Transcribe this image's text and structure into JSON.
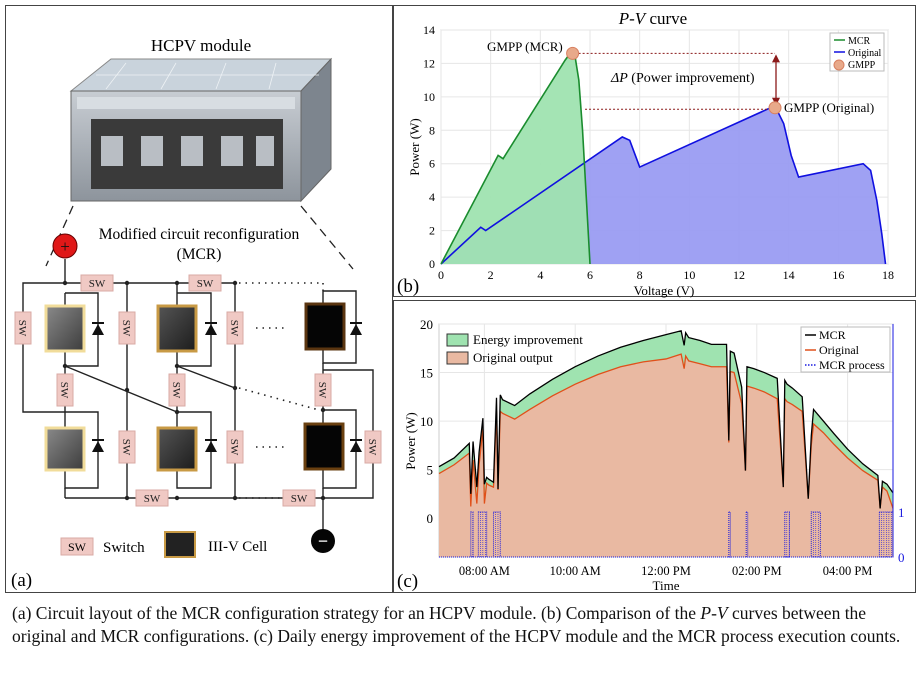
{
  "panel_a": {
    "label": "(a)",
    "title": "HCPV module",
    "subtitle_line1": "Modified circuit reconfiguration",
    "subtitle_line2": "(MCR)",
    "switch_label": "SW",
    "legend_switch": "Switch",
    "legend_cell": "III-V Cell",
    "plus_symbol": "+",
    "minus_symbol": "−"
  },
  "chart_data": [
    {
      "type": "area",
      "panel_label": "(b)",
      "title_italic": "P-V",
      "title_rest": " curve",
      "xlabel": "Voltage (V)",
      "ylabel": "Power (W)",
      "xlim": [
        0,
        18
      ],
      "ylim": [
        0,
        14
      ],
      "xticks": [
        0,
        2,
        4,
        6,
        8,
        10,
        12,
        14,
        16,
        18
      ],
      "yticks": [
        0,
        2,
        4,
        6,
        8,
        10,
        12,
        14
      ],
      "grid": true,
      "legend_position": "top-right",
      "series": [
        {
          "name": "MCR",
          "color": "#1a8c2e",
          "fill": "#9fe3b0",
          "x": [
            0,
            2.3,
            2.5,
            5.0,
            5.2,
            5.4,
            5.55,
            5.7,
            5.85,
            6.0
          ],
          "y": [
            0,
            6.5,
            6.3,
            12.2,
            12.6,
            12.4,
            11,
            8,
            4,
            0
          ]
        },
        {
          "name": "Original",
          "color": "#1010e0",
          "fill": "#9a9cf2",
          "x": [
            0,
            1.6,
            1.8,
            7.3,
            7.6,
            7.8,
            8.0,
            13.2,
            13.5,
            13.8,
            14.1,
            14.4,
            17.0,
            17.3,
            17.55,
            17.75,
            17.9
          ],
          "y": [
            0,
            2.2,
            2.0,
            7.6,
            7.4,
            6.6,
            5.8,
            9.3,
            9.3,
            8.4,
            6.5,
            5.2,
            6.0,
            5.6,
            3.8,
            1.8,
            0
          ]
        }
      ],
      "gmpp": {
        "name": "GMPP",
        "color": "#e8a98a",
        "points": [
          {
            "label": "GMPP (MCR)",
            "x": 5.3,
            "y": 12.6
          },
          {
            "label": "GMPP (Original)",
            "x": 13.45,
            "y": 9.35
          }
        ]
      },
      "annotation": {
        "delta": "ΔP",
        "text": " (Power improvement)",
        "color": "#8b1a1a"
      }
    },
    {
      "type": "area",
      "panel_label": "(c)",
      "xlabel": "Time",
      "ylabel": "Power (W)",
      "xlim": [
        "07:00",
        "17:00"
      ],
      "ylim": [
        -4,
        20
      ],
      "xticks": [
        "08:00 AM",
        "10:00 AM",
        "12:00 PM",
        "02:00 PM",
        "04:00 PM"
      ],
      "yticks": [
        0,
        5,
        10,
        15,
        20
      ],
      "right_yticks": [
        0,
        1
      ],
      "grid": true,
      "legend_position": "top-right",
      "area_legend": [
        {
          "name": "Energy improvement",
          "color": "#9fe3b0"
        },
        {
          "name": "Original output",
          "color": "#e9b9a2"
        }
      ],
      "time": [
        "07:00",
        "07:20",
        "07:40",
        "07:42",
        "07:45",
        "07:50",
        "07:53",
        "07:58",
        "08:00",
        "08:03",
        "08:06",
        "08:12",
        "08:16",
        "08:18",
        "08:21",
        "08:24",
        "08:40",
        "09:00",
        "09:30",
        "10:00",
        "10:30",
        "11:00",
        "11:30",
        "12:00",
        "12:20",
        "12:24",
        "12:26",
        "12:30",
        "12:45",
        "13:00",
        "13:20",
        "13:23",
        "13:25",
        "13:30",
        "13:40",
        "13:45",
        "13:47",
        "13:56",
        "14:10",
        "14:27",
        "14:35",
        "14:37",
        "14:40",
        "14:47",
        "15:00",
        "15:08",
        "15:12",
        "15:15",
        "15:28",
        "15:42",
        "16:00",
        "16:20",
        "16:40",
        "16:43",
        "16:46",
        "16:52",
        "17:00"
      ],
      "series": [
        {
          "name": "MCR",
          "color": "#000000",
          "values": [
            5.3,
            6.2,
            7.7,
            2.5,
            7.9,
            3.2,
            6.8,
            10.3,
            3.5,
            4.2,
            4.0,
            3.7,
            12.4,
            3.0,
            12.7,
            12.2,
            11.6,
            12.8,
            14.3,
            15.6,
            16.7,
            17.6,
            18.3,
            18.9,
            19.3,
            17.8,
            19.1,
            18.6,
            18.3,
            17.9,
            17.9,
            8.0,
            17.2,
            17.0,
            13.5,
            4.9,
            15.6,
            15.4,
            15.0,
            14.4,
            3.2,
            14.2,
            13.8,
            13.4,
            12.5,
            2.0,
            8.5,
            11.2,
            10.0,
            8.7,
            7.1,
            5.6,
            4.4,
            1.0,
            3.8,
            3.5,
            2.6
          ]
        },
        {
          "name": "Original",
          "color": "#e0501a",
          "values": [
            4.6,
            5.5,
            6.7,
            1.2,
            6.0,
            1.5,
            5.5,
            9.2,
            1.5,
            3.6,
            3.4,
            3.2,
            11.0,
            2.9,
            11.0,
            10.8,
            10.2,
            11.2,
            12.6,
            13.8,
            14.8,
            15.6,
            16.1,
            16.4,
            16.9,
            15.4,
            16.7,
            16.2,
            15.9,
            15.6,
            15.6,
            7.8,
            15.1,
            15.0,
            11.8,
            4.9,
            13.6,
            13.4,
            13.0,
            12.3,
            3.2,
            12.3,
            12.0,
            11.7,
            11.0,
            2.0,
            7.5,
            9.7,
            8.8,
            7.6,
            6.2,
            4.9,
            3.9,
            1.0,
            3.2,
            2.8,
            1.0
          ]
        },
        {
          "name": "MCR process",
          "color": "#1a1ae0",
          "style": "dotted",
          "axis": "right",
          "active_intervals": [
            [
              "07:42",
              "07:45"
            ],
            [
              "07:52",
              "08:03"
            ],
            [
              "08:12",
              "08:21"
            ],
            [
              "13:23",
              "13:25"
            ],
            [
              "13:46",
              "13:48"
            ],
            [
              "14:37",
              "14:43"
            ],
            [
              "15:12",
              "15:24"
            ],
            [
              "16:42",
              "17:00"
            ]
          ]
        }
      ]
    }
  ],
  "caption": {
    "part1": "(a) Circuit layout of the MCR configuration strategy for an HCPV module. (b) Comparison of the ",
    "part2_italic": "P-V",
    "part3": " curves between the original and MCR configurations. (c) Daily energy improvement of the HCPV module and the MCR process execution counts."
  }
}
